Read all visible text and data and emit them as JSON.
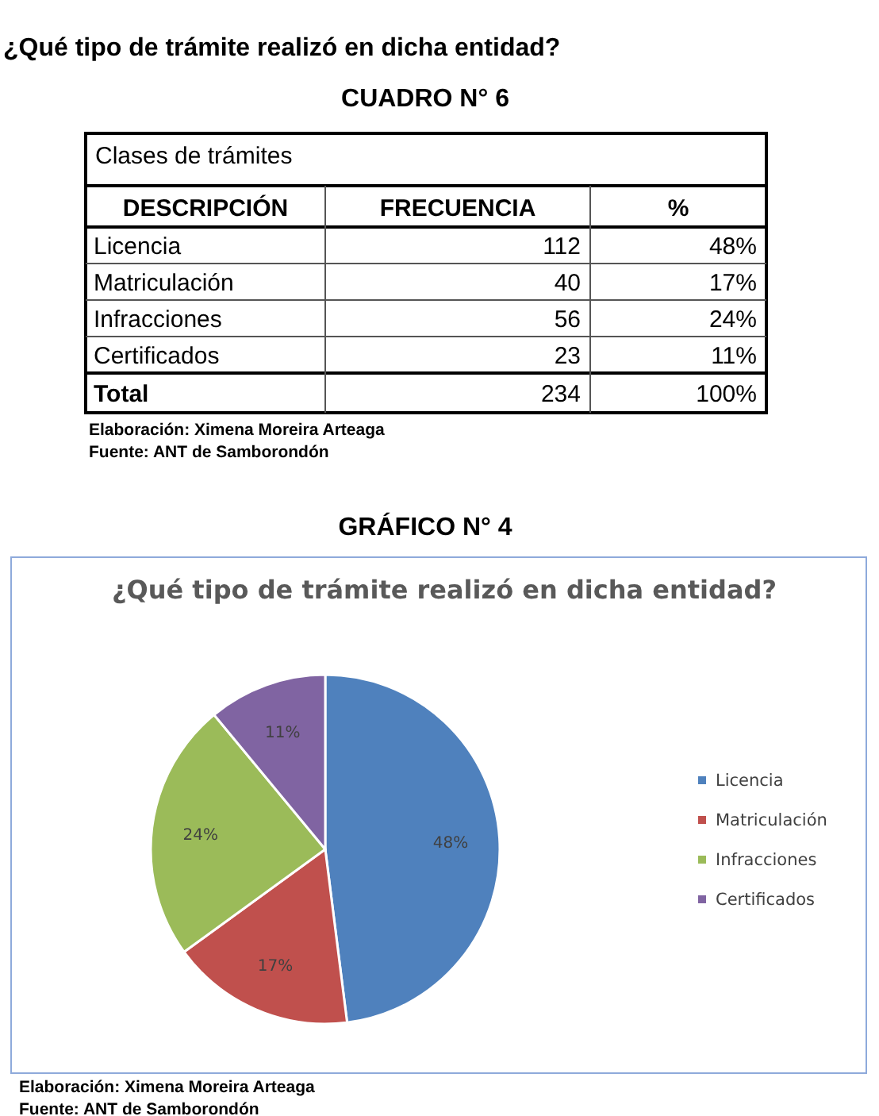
{
  "chart_data": [
    {
      "type": "other",
      "title": "¿Qué tipo de trámite realizó en dicha entidad?",
      "subtitle": "CUADRO N° 6",
      "legend_title": "Clases de trámites",
      "ylabel": "DESCRIPCIÓN",
      "categories": [
        "Licencia",
        "Matriculación",
        "Infracciones",
        "Certificados"
      ],
      "series": [
        {
          "name": "FRECUENCIA",
          "values": [
            112,
            40,
            56,
            23
          ]
        },
        {
          "name": "%",
          "values": [
            48,
            17,
            24,
            11
          ],
          "value_labels": [
            "48%",
            "17%",
            "24%",
            "11%"
          ]
        }
      ],
      "data_labels": true,
      "totals": [
        "234",
        "100%"
      ],
      "annotations": [
        "Total",
        "Elaboración: Ximena Moreira Arteaga",
        "Fuente: ANT de Samborondón"
      ]
    },
    {
      "type": "pie",
      "subtitle": "GRÁFICO N° 4",
      "title": "¿Qué tipo de trámite realizó en dicha entidad?",
      "categories": [
        "Licencia",
        "Matriculación",
        "Infracciones",
        "Certificados"
      ],
      "values": [
        48,
        17,
        24,
        11
      ],
      "colors": [
        "#4f81bd",
        "#c0504d",
        "#9bbb59",
        "#8064a2"
      ],
      "value_labels": [
        "48%",
        "17%",
        "24%",
        "11%"
      ],
      "legend": "right",
      "annotations": [
        "Elaboración: Ximena Moreira Arteaga",
        "Fuente: ANT de Samborondón"
      ]
    }
  ]
}
